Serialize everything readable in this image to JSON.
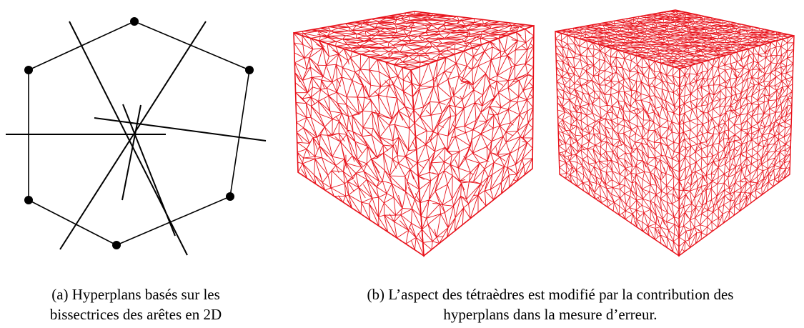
{
  "figure": {
    "caption_a": {
      "line1": "(a) Hyperplans basés sur les",
      "line2": "bissectrices des arêtes en 2D"
    },
    "caption_b": {
      "line1": "(b) L’aspect des tétraèdres est modifié par la contribution des",
      "line2": "hyperplans dans la mesure d’erreur."
    },
    "colors": {
      "mesh_edge": "#e8121b",
      "polygon": "#000000",
      "background": "#ffffff"
    },
    "icons": {
      "vertex": "filled-circle",
      "mesh": "tetrahedral-cube-mesh"
    }
  }
}
